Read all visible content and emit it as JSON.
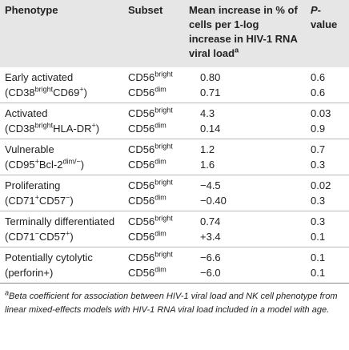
{
  "header": [
    [
      "Phenotype"
    ],
    [
      "Subset"
    ],
    [
      "Mean increase in % of cells per 1-log increase in HIV-1 RNA viral load",
      {
        "sup": "a"
      }
    ],
    [
      {
        "i": "P"
      },
      "-value"
    ]
  ],
  "groups": [
    {
      "phenotype": [
        [
          "Early activated"
        ],
        [
          "(CD38",
          {
            "sup": "bright"
          },
          "CD69",
          {
            "sup": "+"
          },
          ")"
        ]
      ],
      "subset": [
        [
          "CD56",
          {
            "sup": "bright"
          }
        ],
        [
          "CD56",
          {
            "sup": "dim"
          }
        ]
      ],
      "mean": [
        "0.80",
        "0.71"
      ],
      "p": [
        "0.6",
        "0.6"
      ]
    },
    {
      "phenotype": [
        [
          "Activated"
        ],
        [
          "(CD38",
          {
            "sup": "bright"
          },
          "HLA-DR",
          {
            "sup": "+"
          },
          ")"
        ]
      ],
      "subset": [
        [
          "CD56",
          {
            "sup": "bright"
          }
        ],
        [
          "CD56",
          {
            "sup": "dim"
          }
        ]
      ],
      "mean": [
        "4.3",
        "0.14"
      ],
      "p": [
        "0.03",
        "0.9"
      ]
    },
    {
      "phenotype": [
        [
          "Vulnerable"
        ],
        [
          "(CD95",
          {
            "sup": "+"
          },
          "Bcl-2",
          {
            "sup": "dim/−"
          },
          ")"
        ]
      ],
      "subset": [
        [
          "CD56",
          {
            "sup": "bright"
          }
        ],
        [
          "CD56",
          {
            "sup": "dim"
          }
        ]
      ],
      "mean": [
        "1.2",
        "1.6"
      ],
      "p": [
        "0.7",
        "0.3"
      ]
    },
    {
      "phenotype": [
        [
          "Proliferating"
        ],
        [
          "(CD71",
          {
            "sup": "+"
          },
          "CD57",
          {
            "sup": "−"
          },
          ")"
        ]
      ],
      "subset": [
        [
          "CD56",
          {
            "sup": "bright"
          }
        ],
        [
          "CD56",
          {
            "sup": "dim"
          }
        ]
      ],
      "mean": [
        "−4.5",
        "−0.40"
      ],
      "p": [
        "0.02",
        "0.3"
      ]
    },
    {
      "phenotype": [
        [
          "Terminally differentiated"
        ],
        [
          "(CD71",
          {
            "sup": "−"
          },
          "CD57",
          {
            "sup": "+"
          },
          ")"
        ]
      ],
      "subset": [
        [
          "CD56",
          {
            "sup": "bright"
          }
        ],
        [
          "CD56",
          {
            "sup": "dim"
          }
        ]
      ],
      "mean": [
        "0.74",
        "+3.4"
      ],
      "p": [
        "0.3",
        "0.1"
      ]
    },
    {
      "phenotype": [
        [
          "Potentially cytolytic"
        ],
        [
          "(perforin+)"
        ]
      ],
      "subset": [
        [
          "CD56",
          {
            "sup": "bright"
          }
        ],
        [
          "CD56",
          {
            "sup": "dim"
          }
        ]
      ],
      "mean": [
        "−6.6",
        "−6.0"
      ],
      "p": [
        "0.1",
        "0.1"
      ]
    }
  ],
  "footnote": [
    {
      "sup": "a"
    },
    "Beta coefficient for association between HIV-1 viral load and NK cell phenotype from linear mixed-effects models with HIV-1 RNA viral load included in a model with age."
  ]
}
